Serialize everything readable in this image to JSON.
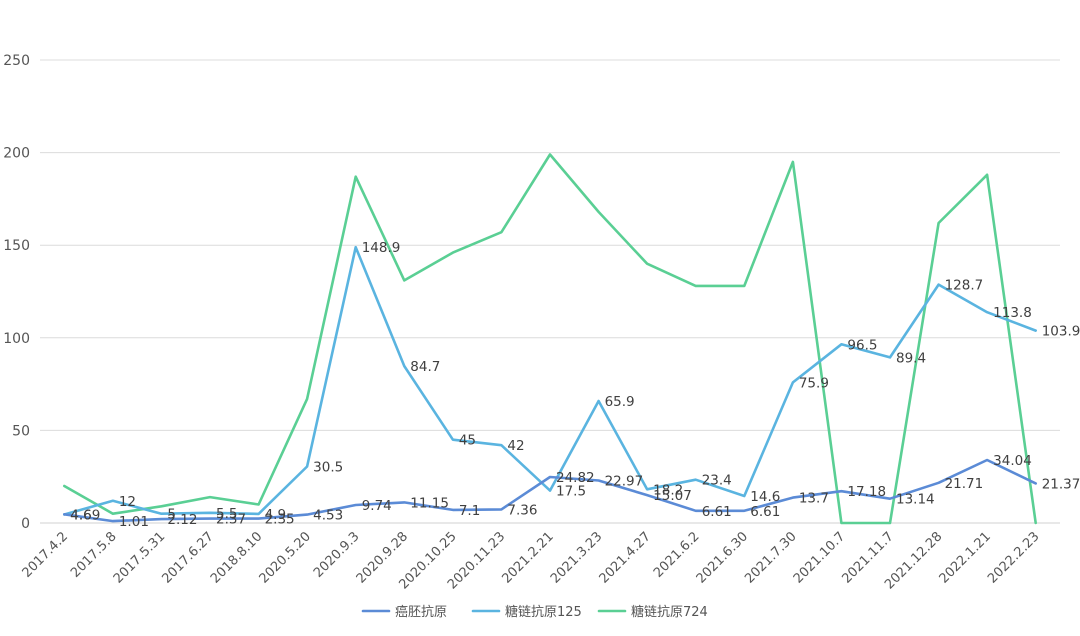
{
  "chart_data": {
    "type": "line",
    "title": "",
    "xlabel": "",
    "ylabel": "",
    "ylim": [
      0,
      250
    ],
    "yticks": [
      0,
      50,
      100,
      150,
      200,
      250
    ],
    "grid": true,
    "legend_position": "bottom",
    "categories": [
      "2017.4.2",
      "2017.5.8",
      "2017.5.31",
      "2017.6.27",
      "2018.8.10",
      "2020.5.20",
      "2020.9.3",
      "2020.9.28",
      "2020.10.25",
      "2020.11.23",
      "2021.2.21",
      "2021.3.23",
      "2021.4.27",
      "2021.6.2",
      "2021.6.30",
      "2021.7.30",
      "2021.10.7",
      "2021.11.7",
      "2021.12.28",
      "2022.1.21",
      "2022.2.23"
    ],
    "series": [
      {
        "name": "癌胚抗原",
        "color": "#5b8bd6",
        "values": [
          4.69,
          1.01,
          2.12,
          2.37,
          2.35,
          4.53,
          9.74,
          11.15,
          7.1,
          7.36,
          24.82,
          22.97,
          15.07,
          6.61,
          6.61,
          13.7,
          17.18,
          13.14,
          21.71,
          34.04,
          21.37
        ],
        "labels": [
          "4.69",
          "1.01",
          "2.12",
          "2.37",
          "2.35",
          "4.53",
          "9.74",
          "11.15",
          "7.1",
          "7.36",
          "24.82",
          "22.97",
          "15.07",
          "6.61",
          "6.61",
          "13.7",
          "17.18",
          "13.14",
          "21.71",
          "34.04",
          "21.37"
        ]
      },
      {
        "name": "糖链抗原125",
        "color": "#5ab4e0",
        "values": [
          4.6,
          12,
          5,
          5.5,
          4.9,
          30.5,
          148.9,
          84.7,
          45,
          42,
          17.5,
          65.9,
          18.2,
          23.4,
          14.6,
          75.9,
          96.5,
          89.4,
          128.7,
          113.8,
          103.9
        ],
        "labels": [
          "4.6",
          "12",
          "5",
          "5.5",
          "4.9",
          "30.5",
          "148.9",
          "84.7",
          "45",
          "42",
          "17.5",
          "65.9",
          "18.2",
          "23.4",
          "14.6",
          "75.9",
          "96.5",
          "89.4",
          "128.7",
          "113.8",
          "103.9"
        ]
      },
      {
        "name": "糖链抗原724",
        "color": "#5acf94",
        "values": [
          20,
          5,
          9,
          14,
          10,
          67,
          187,
          131,
          146,
          157,
          199,
          168,
          140,
          128,
          128,
          195,
          0,
          0,
          162,
          188,
          0
        ],
        "labels": []
      }
    ]
  }
}
